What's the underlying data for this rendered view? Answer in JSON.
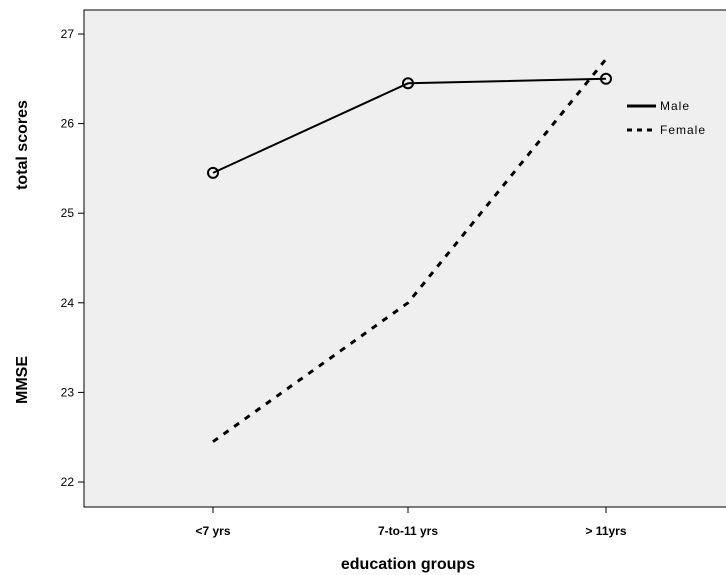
{
  "chart_data": {
    "type": "line",
    "categories": [
      "<7 yrs",
      "7-to-11 yrs",
      "> 11yrs"
    ],
    "series": [
      {
        "name": "Male",
        "values": [
          25.45,
          26.45,
          26.5
        ],
        "style": "solid",
        "markers": "circle"
      },
      {
        "name": "Female",
        "values": [
          22.45,
          24.0,
          26.72
        ],
        "style": "dashed",
        "markers": "none"
      }
    ],
    "xlabel": "education groups",
    "ylabel_parts": [
      "MMSE",
      "total scores"
    ],
    "ylim": [
      21.8,
      27.2
    ],
    "yticks": [
      22,
      23,
      24,
      25,
      26,
      27
    ],
    "grid": false,
    "legend_position": "right",
    "colors": {
      "plot_background": "#efefef",
      "line": "#000000",
      "axis": "#000000"
    }
  }
}
